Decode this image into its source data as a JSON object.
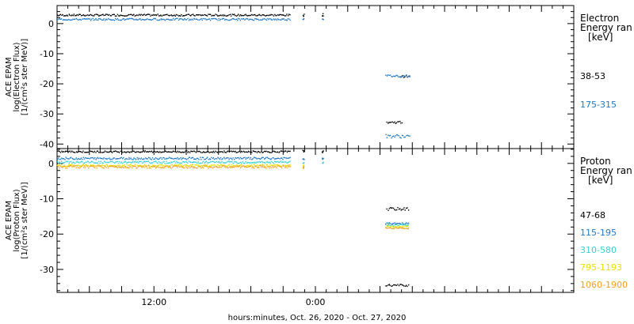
{
  "chart_data": [
    {
      "type": "scatter",
      "panel": "electron",
      "ylabel_lines": [
        "ACE EPAM",
        "log(Electron Flux)",
        "[1/(cm²s ster MeV)]"
      ],
      "ylim": [
        -41.5,
        6
      ],
      "yticks": [
        0,
        -10,
        -20,
        -30,
        -40
      ],
      "legend_title_lines": [
        "Electron",
        "Energy ran",
        "[keV]"
      ],
      "series": [
        {
          "name": "38-53",
          "color": "#000000",
          "segments": [
            {
              "x_start": 0.0,
              "x_end": 21.6,
              "y": 2.8,
              "jitter": 0.3
            },
            {
              "x_start": 22.8,
              "x_end": 22.9,
              "y": 2.8,
              "jitter": 0.4
            },
            {
              "x_start": 24.6,
              "x_end": 24.7,
              "y": 2.9,
              "jitter": 0.4
            },
            {
              "x_start": 30.6,
              "x_end": 32.0,
              "y": -32.8,
              "jitter": 0.4
            },
            {
              "x_start": 31.8,
              "x_end": 32.7,
              "y": -17.6,
              "jitter": 0.3
            }
          ]
        },
        {
          "name": "175-315",
          "color": "#1f78c8",
          "segments": [
            {
              "x_start": 0.0,
              "x_end": 21.6,
              "y": 1.4,
              "jitter": 0.3
            },
            {
              "x_start": 22.8,
              "x_end": 22.9,
              "y": 1.6,
              "jitter": 0.4
            },
            {
              "x_start": 24.6,
              "x_end": 24.7,
              "y": 1.7,
              "jitter": 0.4
            },
            {
              "x_start": 30.5,
              "x_end": 32.7,
              "y": -17.4,
              "jitter": 0.4
            },
            {
              "x_start": 30.5,
              "x_end": 32.7,
              "y": -37.4,
              "jitter": 0.6
            }
          ]
        }
      ]
    },
    {
      "type": "scatter",
      "panel": "proton",
      "ylabel_lines": [
        "ACE EPAM",
        "log(Proton Flux)",
        "[1/(cm²s ster MeV)]"
      ],
      "ylim": [
        -36.5,
        4.2
      ],
      "yticks": [
        0,
        -10,
        -20,
        -30
      ],
      "legend_title_lines": [
        "Proton",
        "Energy ran",
        "[keV]"
      ],
      "series": [
        {
          "name": "47-68",
          "color": "#000000",
          "segments": [
            {
              "x_start": 0.0,
              "x_end": 21.6,
              "y": 3.3,
              "jitter": 0.25
            },
            {
              "x_start": 22.8,
              "x_end": 22.9,
              "y": 3.4,
              "jitter": 0.3
            },
            {
              "x_start": 24.6,
              "x_end": 24.7,
              "y": 3.3,
              "jitter": 0.3
            },
            {
              "x_start": 30.6,
              "x_end": 32.6,
              "y": -12.9,
              "jitter": 0.4
            },
            {
              "x_start": 30.5,
              "x_end": 32.6,
              "y": -34.5,
              "jitter": 0.3
            }
          ]
        },
        {
          "name": "115-195",
          "color": "#1f78c8",
          "segments": [
            {
              "x_start": 0.0,
              "x_end": 21.6,
              "y": 1.4,
              "jitter": 0.3
            },
            {
              "x_start": 22.8,
              "x_end": 22.9,
              "y": 1.3,
              "jitter": 0.3
            },
            {
              "x_start": 24.6,
              "x_end": 24.7,
              "y": 1.2,
              "jitter": 0.3
            },
            {
              "x_start": 30.5,
              "x_end": 32.6,
              "y": -17.0,
              "jitter": 0.2
            }
          ]
        },
        {
          "name": "310-580",
          "color": "#35d0d0",
          "segments": [
            {
              "x_start": 0.0,
              "x_end": 21.6,
              "y": 0.3,
              "jitter": 0.3
            },
            {
              "x_start": 22.8,
              "x_end": 22.9,
              "y": 0.2,
              "jitter": 0.3
            },
            {
              "x_start": 24.6,
              "x_end": 24.7,
              "y": 0.1,
              "jitter": 0.3
            },
            {
              "x_start": 30.5,
              "x_end": 32.6,
              "y": -17.5,
              "jitter": 0.2
            }
          ]
        },
        {
          "name": "795-1193",
          "color": "#e8e000",
          "segments": [
            {
              "x_start": 0.0,
              "x_end": 21.6,
              "y": -0.6,
              "jitter": 0.3
            },
            {
              "x_start": 22.8,
              "x_end": 22.9,
              "y": -0.7,
              "jitter": 0.3
            },
            {
              "x_start": 30.5,
              "x_end": 32.6,
              "y": -17.9,
              "jitter": 0.2
            }
          ]
        },
        {
          "name": "1060-1900",
          "color": "#f0a020",
          "segments": [
            {
              "x_start": 0.0,
              "x_end": 21.6,
              "y": -1.0,
              "jitter": 0.35
            },
            {
              "x_start": 22.8,
              "x_end": 22.9,
              "y": -1.1,
              "jitter": 0.3
            },
            {
              "x_start": 30.5,
              "x_end": 32.6,
              "y": -18.3,
              "jitter": 0.2
            }
          ]
        }
      ]
    }
  ],
  "x_axis": {
    "xlim": [
      0,
      48
    ],
    "tick_labels": [
      {
        "x": 9.0,
        "label": "12:00"
      },
      {
        "x": 24.0,
        "label": "0:00"
      }
    ],
    "xlabel": "hours:minutes, Oct. 26, 2020 - Oct. 27, 2020"
  }
}
